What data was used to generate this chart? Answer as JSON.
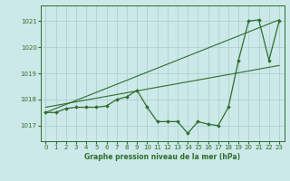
{
  "title": "Graphe pression niveau de la mer (hPa)",
  "bg_color": "#cce8e8",
  "grid_color": "#aacccc",
  "line_color": "#2d6e2d",
  "marker_color": "#2d6e2d",
  "xlim": [
    -0.5,
    23.5
  ],
  "ylim": [
    1016.4,
    1021.6
  ],
  "yticks": [
    1017,
    1018,
    1019,
    1020,
    1021
  ],
  "xticks": [
    0,
    1,
    2,
    3,
    4,
    5,
    6,
    7,
    8,
    9,
    10,
    11,
    12,
    13,
    14,
    15,
    16,
    17,
    18,
    19,
    20,
    21,
    22,
    23
  ],
  "series_main": {
    "x": [
      0,
      1,
      2,
      3,
      4,
      5,
      6,
      7,
      8,
      9,
      10,
      11,
      12,
      13,
      14,
      15,
      16,
      17,
      18,
      19,
      20,
      21,
      22,
      23
    ],
    "y": [
      1017.5,
      1017.5,
      1017.65,
      1017.7,
      1017.7,
      1017.7,
      1017.75,
      1018.0,
      1018.1,
      1018.35,
      1017.7,
      1017.15,
      1017.15,
      1017.15,
      1016.7,
      1017.15,
      1017.05,
      1017.0,
      1017.7,
      1019.5,
      1021.0,
      1021.05,
      1019.5,
      1021.0
    ]
  },
  "series_line1": {
    "x": [
      0,
      23
    ],
    "y": [
      1017.5,
      1021.05
    ]
  },
  "series_line2": {
    "x": [
      0,
      23
    ],
    "y": [
      1017.7,
      1019.3
    ]
  }
}
